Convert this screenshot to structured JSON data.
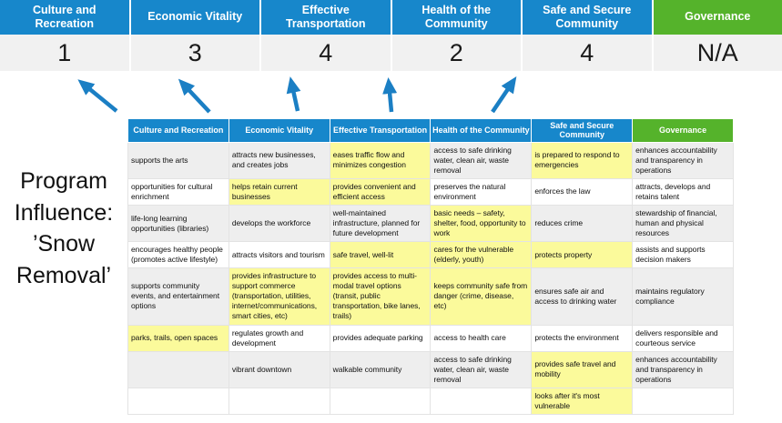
{
  "colors": {
    "header_blue": "#1787CB",
    "header_green": "#55B32B",
    "highlight_yellow": "#FBFA9B",
    "score_band_gray": "#F1F1F1",
    "row_stripe_gray": "#EEEEEE",
    "arrow_blue": "#1B7FC4"
  },
  "program": {
    "label": "Program Influence: ’Snow Removal’"
  },
  "summary": {
    "columns": [
      {
        "label": "Culture and Recreation",
        "score": "1",
        "accent": "blue"
      },
      {
        "label": "Economic Vitality",
        "score": "3",
        "accent": "blue"
      },
      {
        "label": "Effective Transportation",
        "score": "4",
        "accent": "blue"
      },
      {
        "label": "Health of the Community",
        "score": "2",
        "accent": "blue"
      },
      {
        "label": "Safe and Secure Community",
        "score": "4",
        "accent": "blue"
      },
      {
        "label": "Governance",
        "score": "N/A",
        "accent": "green"
      }
    ]
  },
  "matrix": {
    "headers": [
      {
        "label": "Culture and Recreation",
        "accent": "blue"
      },
      {
        "label": "Economic Vitality",
        "accent": "blue"
      },
      {
        "label": "Effective Transportation",
        "accent": "blue"
      },
      {
        "label": "Health of the Community",
        "accent": "blue"
      },
      {
        "label": "Safe and Secure Community",
        "accent": "blue"
      },
      {
        "label": "Governance",
        "accent": "green"
      }
    ],
    "rows": [
      [
        {
          "t": "supports the arts",
          "hl": false
        },
        {
          "t": "attracts new businesses, and creates jobs",
          "hl": false
        },
        {
          "t": "eases traffic flow and minimizes congestion",
          "hl": true
        },
        {
          "t": "access to safe drinking water, clean air, waste removal",
          "hl": false
        },
        {
          "t": "is prepared to respond to emergencies",
          "hl": true
        },
        {
          "t": "enhances accountability and transparency in operations",
          "hl": false
        }
      ],
      [
        {
          "t": "opportunities for cultural enrichment",
          "hl": false
        },
        {
          "t": "helps retain current businesses",
          "hl": true
        },
        {
          "t": "provides convenient and efficient access",
          "hl": true
        },
        {
          "t": "preserves the natural environment",
          "hl": false
        },
        {
          "t": "enforces the law",
          "hl": false
        },
        {
          "t": "attracts, develops and retains talent",
          "hl": false
        }
      ],
      [
        {
          "t": "life-long learning opportunities (libraries)",
          "hl": false
        },
        {
          "t": "develops the workforce",
          "hl": false
        },
        {
          "t": "well-maintained infrastructure, planned for future development",
          "hl": false
        },
        {
          "t": "basic needs – safety, shelter, food, opportunity to work",
          "hl": true
        },
        {
          "t": "reduces crime",
          "hl": false
        },
        {
          "t": "stewardship of financial, human and physical resources",
          "hl": false
        }
      ],
      [
        {
          "t": "encourages healthy people (promotes active lifestyle)",
          "hl": false
        },
        {
          "t": "attracts visitors and tourism",
          "hl": false
        },
        {
          "t": "safe travel, well-lit",
          "hl": true
        },
        {
          "t": "cares for the vulnerable (elderly, youth)",
          "hl": true
        },
        {
          "t": "protects property",
          "hl": true
        },
        {
          "t": "assists and supports decision makers",
          "hl": false
        }
      ],
      [
        {
          "t": "supports community events, and entertainment options",
          "hl": false
        },
        {
          "t": "provides infrastructure to support commerce (transportation, utilities, internet/communications, smart cities, etc)",
          "hl": true
        },
        {
          "t": "provides access to multi-modal travel options (transit, public transportation, bike lanes, trails)",
          "hl": true
        },
        {
          "t": "keeps community safe from danger (crime, disease, etc)",
          "hl": true
        },
        {
          "t": "ensures safe air and access to drinking water",
          "hl": false
        },
        {
          "t": "maintains regulatory compliance",
          "hl": false
        }
      ],
      [
        {
          "t": "parks, trails, open spaces",
          "hl": true
        },
        {
          "t": "regulates growth and development",
          "hl": false
        },
        {
          "t": "provides adequate parking",
          "hl": false
        },
        {
          "t": "access to health care",
          "hl": false
        },
        {
          "t": "protects the environment",
          "hl": false
        },
        {
          "t": "delivers responsible and courteous service",
          "hl": false
        }
      ],
      [
        {
          "t": "",
          "hl": false
        },
        {
          "t": "vibrant downtown",
          "hl": false
        },
        {
          "t": "walkable community",
          "hl": false
        },
        {
          "t": "access to safe drinking water, clean air, waste removal",
          "hl": false
        },
        {
          "t": "provides safe travel and mobility",
          "hl": true
        },
        {
          "t": "enhances accountability and transparency in operations",
          "hl": false
        }
      ],
      [
        {
          "t": "",
          "hl": false
        },
        {
          "t": "",
          "hl": false
        },
        {
          "t": "",
          "hl": false
        },
        {
          "t": "",
          "hl": false
        },
        {
          "t": "looks after it's most vulnerable",
          "hl": true
        },
        {
          "t": "",
          "hl": false
        }
      ]
    ]
  }
}
